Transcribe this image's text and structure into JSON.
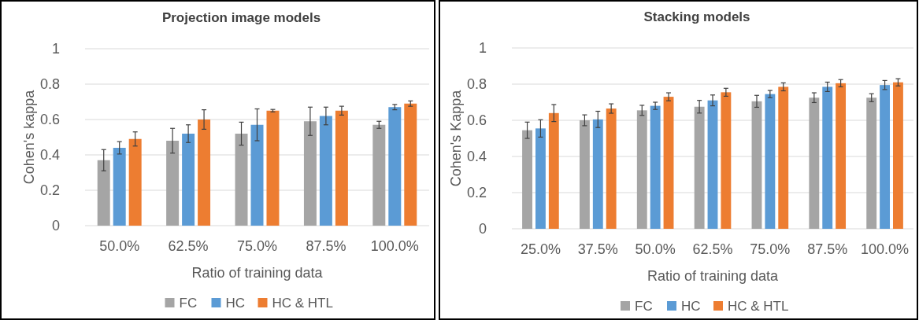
{
  "chart_data": [
    {
      "type": "bar",
      "title": "Projection image models",
      "xlabel": "Ratio of training data",
      "ylabel": "Cohen's kappa",
      "categories": [
        "50.0%",
        "62.5%",
        "75.0%",
        "87.5%",
        "100.0%"
      ],
      "ylim": [
        0,
        1
      ],
      "yticks": [
        0,
        0.2,
        0.4,
        0.6,
        0.8,
        1
      ],
      "grid": "y",
      "legend": "bottom",
      "series": [
        {
          "name": "FC",
          "color": "#a5a5a5",
          "values": [
            0.37,
            0.48,
            0.52,
            0.59,
            0.57
          ],
          "errors": [
            0.06,
            0.07,
            0.065,
            0.08,
            0.02
          ]
        },
        {
          "name": "HC",
          "color": "#5b9bd5",
          "values": [
            0.44,
            0.52,
            0.57,
            0.62,
            0.67
          ],
          "errors": [
            0.035,
            0.05,
            0.09,
            0.05,
            0.015
          ]
        },
        {
          "name": "HC & HTL",
          "color": "#ed7d31",
          "values": [
            0.49,
            0.6,
            0.65,
            0.65,
            0.69
          ],
          "errors": [
            0.04,
            0.055,
            0.007,
            0.025,
            0.015
          ]
        }
      ]
    },
    {
      "type": "bar",
      "title": "Stacking models",
      "xlabel": "Ratio of training data",
      "ylabel": "Cohen's Kappa",
      "categories": [
        "25.0%",
        "37.5%",
        "50.0%",
        "62.5%",
        "75.0%",
        "87.5%",
        "100.0%"
      ],
      "ylim": [
        0,
        1
      ],
      "yticks": [
        0,
        0.2,
        0.4,
        0.6,
        0.8,
        1
      ],
      "grid": "y",
      "legend": "bottom",
      "series": [
        {
          "name": "FC",
          "color": "#a5a5a5",
          "values": [
            0.545,
            0.6,
            0.655,
            0.675,
            0.705,
            0.725,
            0.725
          ],
          "errors": [
            0.045,
            0.03,
            0.028,
            0.035,
            0.033,
            0.027,
            0.022
          ]
        },
        {
          "name": "HC",
          "color": "#5b9bd5",
          "values": [
            0.555,
            0.605,
            0.68,
            0.71,
            0.745,
            0.785,
            0.795
          ],
          "errors": [
            0.048,
            0.045,
            0.02,
            0.03,
            0.02,
            0.026,
            0.025
          ]
        },
        {
          "name": "HC & HTL",
          "color": "#ed7d31",
          "values": [
            0.64,
            0.665,
            0.73,
            0.755,
            0.785,
            0.805,
            0.81
          ],
          "errors": [
            0.047,
            0.026,
            0.022,
            0.022,
            0.022,
            0.02,
            0.02
          ]
        }
      ]
    }
  ]
}
